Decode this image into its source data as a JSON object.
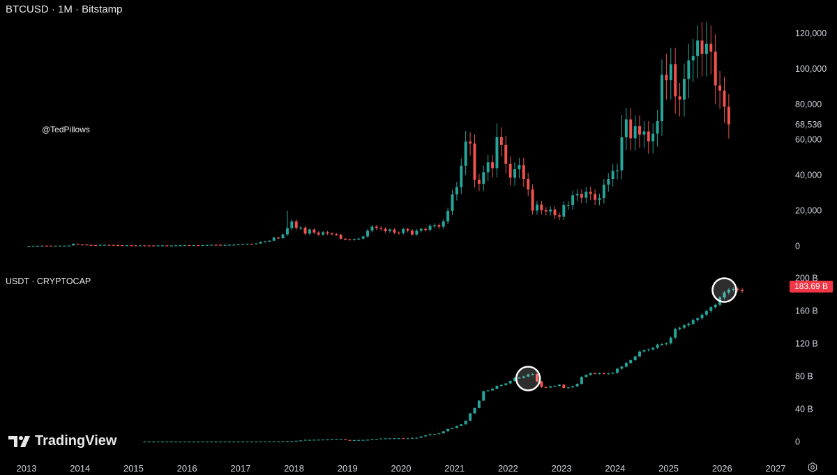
{
  "chart_data": [
    {
      "type": "candlestick",
      "title": "BTCUSD · 1M · Bitstamp",
      "annotation": "@TedPillows",
      "ylim": [
        0,
        130000
      ],
      "yticks": [
        {
          "value": 0,
          "label": "0"
        },
        {
          "value": 20000,
          "label": "20,000"
        },
        {
          "value": 40000,
          "label": "40,000"
        },
        {
          "value": 60000,
          "label": "60,000"
        },
        {
          "value": 68536,
          "label": "68,536"
        },
        {
          "value": 80000,
          "label": "80,000"
        },
        {
          "value": 100000,
          "label": "100,000"
        },
        {
          "value": 120000,
          "label": "120,000"
        }
      ],
      "note": "Monthly closes approximated from visual; open = previous close",
      "start": "2013-01",
      "closes": [
        20,
        33,
        93,
        139,
        128,
        97,
        106,
        135,
        141,
        211,
        1205,
        805,
        800,
        550,
        450,
        445,
        630,
        640,
        585,
        478,
        388,
        338,
        375,
        318,
        218,
        254,
        244,
        236,
        230,
        263,
        284,
        230,
        236,
        314,
        377,
        430,
        368,
        437,
        416,
        448,
        531,
        673,
        624,
        575,
        608,
        700,
        742,
        960,
        968,
        1189,
        1080,
        1348,
        2300,
        2480,
        2875,
        4703,
        4338,
        6449,
        10000,
        13800,
        10200,
        10300,
        6900,
        9200,
        7500,
        6400,
        7700,
        7000,
        6600,
        6300,
        4000,
        3700,
        3450,
        3800,
        4100,
        5300,
        8600,
        10800,
        10100,
        9600,
        8300,
        9200,
        7500,
        7200,
        9400,
        8600,
        6400,
        8600,
        9500,
        9100,
        11300,
        11700,
        10800,
        13800,
        19700,
        29000,
        33100,
        45200,
        58800,
        57700,
        37300,
        35000,
        41500,
        47100,
        43800,
        61300,
        57000,
        46300,
        38500,
        43200,
        45500,
        37700,
        31800,
        19900,
        23300,
        20100,
        19400,
        20500,
        17200,
        16500,
        23100,
        23100,
        28500,
        29200,
        27200,
        30500,
        29200,
        26000,
        27000,
        34500,
        37700,
        42300,
        42600,
        61200,
        71300,
        60700,
        67500,
        62700,
        64600,
        58900,
        63300,
        70300,
        96400,
        93400,
        102400,
        84300,
        82500,
        94200,
        104600,
        107100,
        115800,
        108200,
        114000,
        109500,
        90500,
        87500,
        78500,
        68536
      ],
      "highs": [
        [
          2017,
          11,
          19800
        ],
        [
          2021,
          3,
          64800
        ],
        [
          2021,
          10,
          69000
        ],
        [
          2024,
          2,
          73800
        ],
        [
          2024,
          12,
          108300
        ],
        [
          2025,
          7,
          124400
        ],
        [
          2025,
          9,
          126200
        ]
      ]
    },
    {
      "type": "candlestick",
      "title": "USDT · CRYPTOCAP",
      "unit": "B",
      "current_value": 183.69,
      "current_label": "183.69 B",
      "ylim": [
        0,
        205
      ],
      "yticks": [
        {
          "value": 0,
          "label": "0"
        },
        {
          "value": 40,
          "label": "40 B"
        },
        {
          "value": 80,
          "label": "80 B"
        },
        {
          "value": 120,
          "label": "120 B"
        },
        {
          "value": 160,
          "label": "160 B"
        },
        {
          "value": 200,
          "label": "200 B"
        }
      ],
      "start": "2015-03",
      "closes": [
        0.1,
        0.1,
        0.1,
        0.1,
        0.1,
        0.1,
        0.1,
        0.1,
        0.1,
        0.1,
        0.1,
        0.1,
        0.1,
        0.1,
        0.1,
        0.1,
        0.1,
        0.1,
        0.1,
        0.1,
        0.1,
        0.1,
        0.1,
        0.1,
        0.1,
        0.1,
        0.1,
        0.2,
        0.2,
        0.2,
        0.3,
        0.4,
        0.5,
        0.7,
        1.0,
        1.4,
        2.2,
        2.2,
        2.3,
        2.4,
        2.5,
        2.6,
        2.7,
        2.8,
        2.8,
        2.0,
        1.8,
        1.9,
        2.0,
        2.1,
        2.3,
        2.8,
        3.2,
        3.8,
        4.0,
        4.0,
        4.1,
        4.2,
        4.1,
        4.1,
        4.5,
        4.7,
        6.3,
        7.6,
        9.0,
        9.2,
        10.0,
        12.5,
        15.5,
        16.5,
        19.0,
        21.0,
        25.5,
        34.5,
        41.0,
        50.0,
        61.5,
        62.5,
        64.5,
        68.0,
        69.0,
        71.0,
        74.0,
        78.0,
        78.0,
        79.5,
        82.0,
        82.5,
        73.5,
        66.5,
        66.0,
        67.5,
        68.0,
        69.5,
        65.5,
        66.2,
        67.5,
        70.5,
        79.0,
        81.5,
        83.5,
        83.0,
        83.5,
        83.0,
        83.2,
        84.0,
        89.0,
        91.5,
        96.0,
        99.5,
        104.0,
        110.0,
        111.5,
        112.5,
        114.5,
        118.5,
        119.0,
        120.0,
        127.0,
        137.5,
        139.0,
        142.0,
        144.0,
        148.5,
        150.5,
        155.0,
        159.5,
        164.0,
        167.0,
        176.0,
        182.0,
        185.5,
        186.5,
        185.5,
        183.69
      ],
      "highlights": [
        "2022-04 to 2022-06",
        "2025-12 to 2026-02"
      ]
    }
  ],
  "x_axis_labels": [
    "2013",
    "2014",
    "2015",
    "2016",
    "2017",
    "2018",
    "2019",
    "2020",
    "2021",
    "2022",
    "2023",
    "2024",
    "2025",
    "2026",
    "2027"
  ],
  "branding": {
    "name": "TradingView"
  },
  "colors": {
    "up": "#26a69a",
    "down": "#ef5350",
    "background": "#000000",
    "axis_text": "#d1d4dc",
    "badge": "#f23645"
  }
}
